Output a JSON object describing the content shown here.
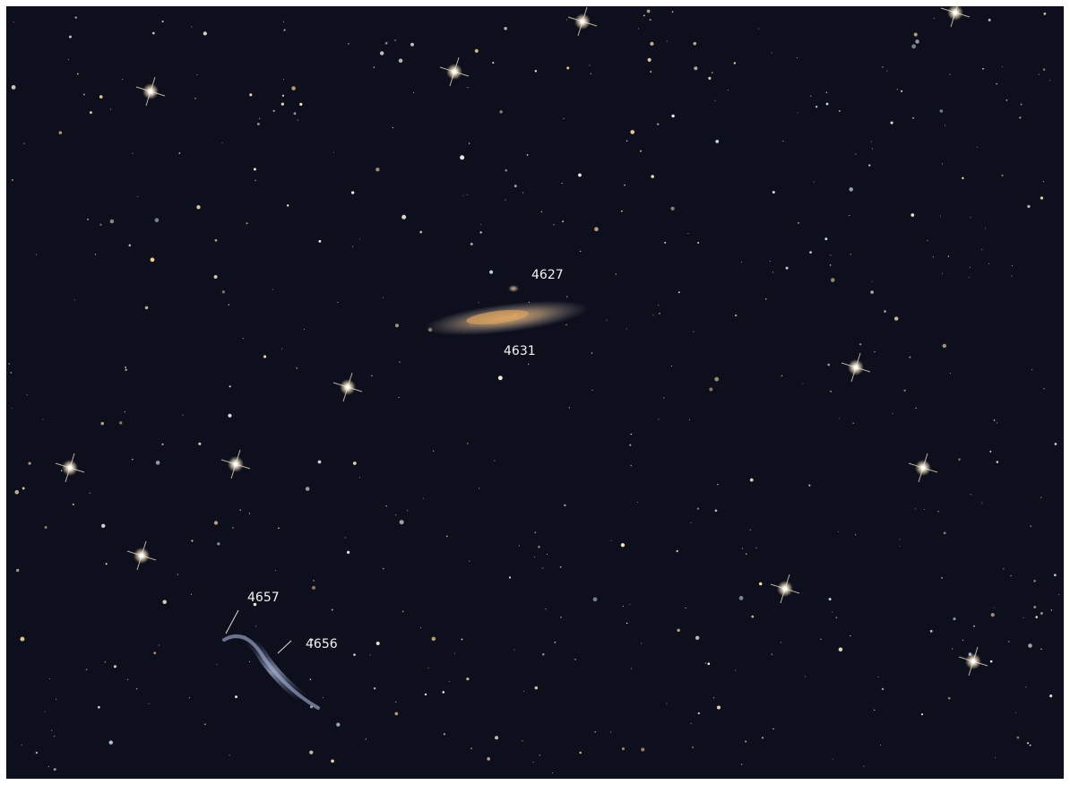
{
  "labels": [
    "4627",
    "4631",
    "4657",
    "4656"
  ]
}
